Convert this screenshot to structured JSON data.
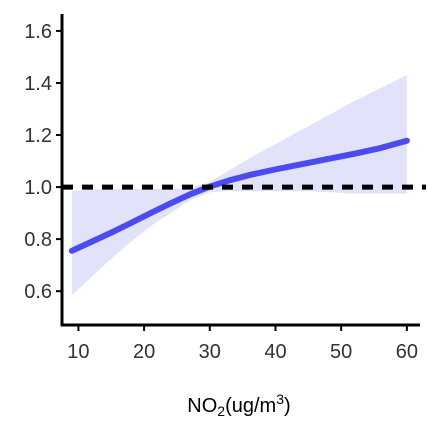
{
  "chart_data": {
    "type": "line",
    "xlabel_base": "NO",
    "xlabel_sub": "2",
    "xlabel_mid": "(ug/m",
    "xlabel_sup": "3",
    "xlabel_end": ")",
    "ylabel": "",
    "title": "",
    "xlim": [
      7.5,
      62
    ],
    "ylim": [
      0.47,
      1.665
    ],
    "x_ticks": [
      10,
      20,
      30,
      40,
      50,
      60
    ],
    "x_tick_labels": [
      "10",
      "20",
      "30",
      "40",
      "50",
      "60"
    ],
    "y_ticks": [
      0.6,
      0.8,
      1.0,
      1.2,
      1.4,
      1.6
    ],
    "y_tick_labels": [
      "0.6",
      "0.8",
      "1.0",
      "1.2",
      "1.4",
      "1.6"
    ],
    "reference_line": {
      "y": 1.0,
      "style": "dotted"
    },
    "colors": {
      "line": "#4b4bf0",
      "band": "#e2e2fb",
      "axis": "#000000",
      "reference": "#000000"
    },
    "series": [
      {
        "x": [
          9,
          12,
          15,
          18,
          21,
          24,
          27,
          30,
          33,
          36,
          40,
          44,
          48,
          52,
          56,
          60
        ],
        "y": [
          0.755,
          0.79,
          0.825,
          0.862,
          0.9,
          0.937,
          0.972,
          1.002,
          1.026,
          1.046,
          1.068,
          1.088,
          1.108,
          1.128,
          1.15,
          1.178
        ],
        "lower": [
          0.585,
          0.655,
          0.725,
          0.79,
          0.85,
          0.9,
          0.95,
          0.98,
          0.985,
          0.985,
          0.985,
          0.985,
          0.98,
          0.975,
          0.975,
          0.975
        ],
        "upper": [
          0.985,
          0.99,
          0.992,
          0.993,
          0.993,
          0.993,
          0.995,
          1.02,
          1.065,
          1.11,
          1.165,
          1.22,
          1.275,
          1.33,
          1.38,
          1.43
        ]
      }
    ]
  }
}
